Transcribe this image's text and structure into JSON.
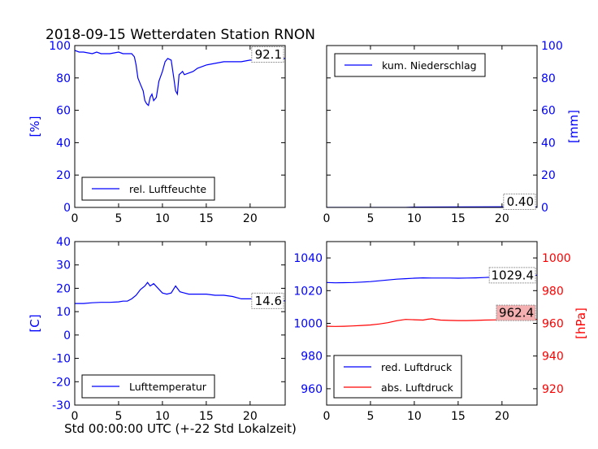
{
  "figure": {
    "title": "2018-09-15 Wetterdaten Station RNON",
    "xlabel": "Std 00:00:00 UTC (+-22 Std Lokalzeit)"
  },
  "colors": {
    "blue": "#0000ff",
    "red": "#ff0000",
    "value_box_red": "#f4b0b0"
  },
  "chart_data": [
    {
      "id": "humidity",
      "type": "line",
      "title": "",
      "ylabel": "[%]",
      "xlim": [
        0,
        24
      ],
      "ylim": [
        0,
        100
      ],
      "xticks": [
        0,
        5,
        10,
        15,
        20
      ],
      "yticks": [
        0,
        20,
        40,
        60,
        80,
        100
      ],
      "axis_color": "blue",
      "legend": "bottom-left",
      "series": [
        {
          "name": "rel. Luftfeuchte",
          "color": "#0000ff",
          "x": [
            0,
            0.5,
            1,
            2,
            2.5,
            3,
            4,
            5,
            5.5,
            6,
            6.5,
            6.8,
            7,
            7.2,
            7.5,
            7.8,
            8,
            8.2,
            8.4,
            8.6,
            8.8,
            9,
            9.3,
            9.6,
            10,
            10.3,
            10.6,
            11,
            11.3,
            11.5,
            11.7,
            11.9,
            12.1,
            12.3,
            12.5,
            13,
            13.5,
            14,
            15,
            16,
            17,
            18,
            19,
            20,
            21,
            22,
            23,
            24
          ],
          "y": [
            97,
            96,
            96,
            95,
            96,
            95,
            95,
            96,
            95,
            95,
            95,
            93,
            88,
            80,
            76,
            72,
            66,
            64,
            63,
            68,
            70,
            66,
            68,
            78,
            84,
            90,
            92,
            91,
            80,
            72,
            70,
            82,
            83,
            84,
            82,
            83,
            84,
            86,
            88,
            89,
            90,
            90,
            90,
            91,
            91,
            91,
            92,
            92
          ]
        }
      ],
      "value_label": "92.1",
      "value_box": "top-right"
    },
    {
      "id": "precipitation",
      "type": "line",
      "title": "",
      "ylabel": "[mm]",
      "xlim": [
        0,
        24
      ],
      "ylim": [
        0,
        100
      ],
      "xticks": [
        0,
        5,
        10,
        15,
        20
      ],
      "yticks": [
        0,
        20,
        40,
        60,
        80,
        100
      ],
      "axis_color": "blue",
      "yaxis_side": "right",
      "legend": "top-left",
      "series": [
        {
          "name": "kum. Niederschlag",
          "color": "#0000ff",
          "x": [
            0,
            9,
            10,
            16,
            20,
            24
          ],
          "y": [
            0,
            0,
            0.2,
            0.3,
            0.4,
            0.4
          ]
        }
      ],
      "value_label": "0.40",
      "value_box": "bottom-right"
    },
    {
      "id": "temperature",
      "type": "line",
      "title": "",
      "ylabel": "[C]",
      "xlim": [
        0,
        24
      ],
      "ylim": [
        -30,
        40
      ],
      "xticks": [
        0,
        5,
        10,
        15,
        20
      ],
      "yticks": [
        -30,
        -20,
        -10,
        0,
        10,
        20,
        30,
        40
      ],
      "axis_color": "blue",
      "legend": "bottom-left",
      "series": [
        {
          "name": "Lufttemperatur",
          "color": "#0000ff",
          "x": [
            0,
            1,
            2,
            3,
            4,
            5,
            5.5,
            6,
            6.5,
            7,
            7.5,
            8,
            8.3,
            8.6,
            9,
            9.5,
            10,
            10.5,
            11,
            11.5,
            12,
            12.5,
            13,
            14,
            15,
            16,
            17,
            18,
            19,
            20,
            21,
            22,
            23,
            24
          ],
          "y": [
            13.5,
            13.5,
            13.8,
            14,
            14,
            14.2,
            14.5,
            14.5,
            15.5,
            17,
            19.5,
            21,
            22.5,
            21,
            22,
            20,
            18,
            17.5,
            18,
            21,
            18.5,
            18,
            17.5,
            17.5,
            17.5,
            17,
            17,
            16.5,
            15.5,
            15.5,
            15.5,
            15,
            14.8,
            14.6
          ]
        }
      ],
      "value_label": "14.6",
      "value_box": "right-at-value"
    },
    {
      "id": "pressure",
      "type": "line",
      "title": "",
      "ylabel_right": "[hPa]",
      "xlim": [
        0,
        24
      ],
      "ylim": [
        950,
        1050
      ],
      "ylim_right": [
        910,
        1010
      ],
      "xticks": [
        0,
        5,
        10,
        15,
        20
      ],
      "yticks": [
        960,
        980,
        1000,
        1020,
        1040
      ],
      "yticks_right": [
        920,
        940,
        960,
        980,
        1000
      ],
      "axis_color": "blue",
      "axis_color_right": "red",
      "legend": "bottom-left",
      "series": [
        {
          "name": "red. Luftdruck",
          "color": "#0000ff",
          "axis": "left",
          "x": [
            0,
            1,
            2,
            3,
            4,
            5,
            6,
            7,
            8,
            9,
            10,
            11,
            12,
            13,
            14,
            15,
            16,
            17,
            18,
            19,
            20,
            21,
            22,
            23,
            24
          ],
          "y": [
            1025,
            1024.8,
            1024.9,
            1025,
            1025.2,
            1025.5,
            1026,
            1026.5,
            1027,
            1027.3,
            1027.6,
            1027.8,
            1027.7,
            1027.7,
            1027.7,
            1027.6,
            1027.7,
            1027.8,
            1028,
            1028.3,
            1028.6,
            1028.9,
            1029.1,
            1029.3,
            1029.4
          ]
        },
        {
          "name": "abs. Luftdruck",
          "color": "#ff0000",
          "axis": "right",
          "x": [
            0,
            1,
            2,
            3,
            4,
            5,
            6,
            7,
            8,
            9,
            10,
            11,
            11.5,
            12,
            12.5,
            13,
            14,
            15,
            16,
            17,
            18,
            19,
            20,
            21,
            22,
            23,
            24
          ],
          "y": [
            958.2,
            958.1,
            958.2,
            958.4,
            958.7,
            959,
            959.6,
            960.4,
            961.6,
            962.4,
            962.2,
            962,
            962.5,
            962.8,
            962.3,
            962.0,
            961.8,
            961.7,
            961.7,
            961.8,
            962,
            962.1,
            962.2,
            962.3,
            962.3,
            962.4,
            962.4
          ]
        }
      ],
      "value_label": "1029.4",
      "value_label_right": "962.4",
      "value_box": "right-at-value"
    }
  ]
}
